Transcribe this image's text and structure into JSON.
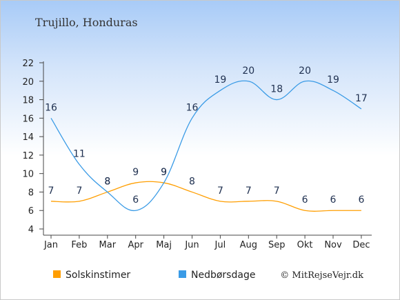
{
  "chart_data": {
    "type": "line",
    "title": "Trujillo, Honduras",
    "categories": [
      "Jan",
      "Feb",
      "Mar",
      "Apr",
      "Maj",
      "Jun",
      "Jul",
      "Aug",
      "Sep",
      "Okt",
      "Nov",
      "Dec"
    ],
    "ylim": [
      4,
      22
    ],
    "yticks": [
      "4",
      "6",
      "8",
      "10",
      "12",
      "14",
      "16",
      "18",
      "20",
      "22"
    ],
    "grid": false,
    "legend_position": "bottom-left",
    "series": [
      {
        "name": "Solskinstimer",
        "color": "#ff9e00",
        "values": [
          7,
          7,
          8,
          9,
          9,
          8,
          7,
          7,
          7,
          6,
          6,
          6
        ]
      },
      {
        "name": "Nedbørsdage",
        "color": "#3a9be6",
        "values": [
          16,
          11,
          8,
          6,
          9,
          16,
          19,
          20,
          18,
          20,
          19,
          17
        ]
      }
    ]
  },
  "credit": "© MitRejseVejr.dk"
}
